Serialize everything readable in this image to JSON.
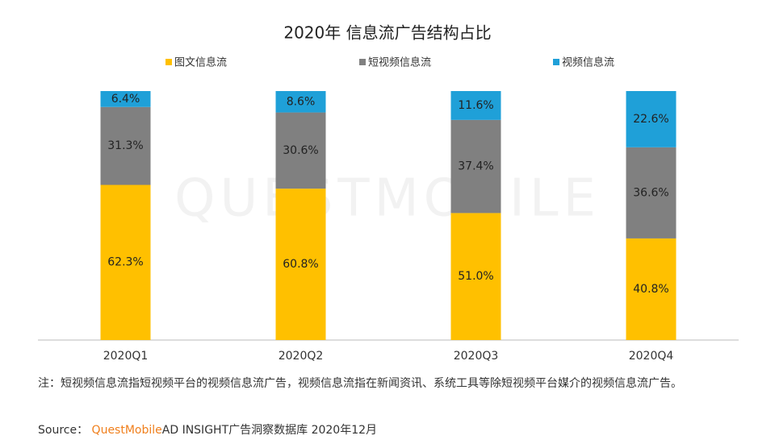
{
  "chart_data": {
    "type": "stacked_bar",
    "title": "2020年 信息流广告结构占比",
    "categories": [
      "2020Q1",
      "2020Q2",
      "2020Q3",
      "2020Q4"
    ],
    "series": [
      {
        "name": "图文信息流",
        "color": "#ffc000",
        "values": [
          62.3,
          60.8,
          51.0,
          40.8
        ],
        "value_labels": [
          "62.3%",
          "60.8%",
          "51.0%",
          "40.8%"
        ]
      },
      {
        "name": "短视频信息流",
        "color": "#808080",
        "values": [
          31.3,
          30.6,
          37.4,
          36.6
        ],
        "value_labels": [
          "31.3%",
          "30.6%",
          "37.4%",
          "36.6%"
        ]
      },
      {
        "name": "视频信息流",
        "color": "#1fa0d8",
        "values": [
          6.4,
          8.6,
          11.6,
          22.6
        ],
        "value_labels": [
          "6.4%",
          "8.6%",
          "11.6%",
          "22.6%"
        ]
      }
    ],
    "ylim": [
      0,
      100
    ],
    "legend": "top",
    "watermark": "QUESTMOBILE",
    "note": "注：短视频信息流指短视频平台的视频信息流广告，视频信息流指在新闻资讯、系统工具等除短视频平台媒介的视频信息流广告。",
    "source": {
      "label": "Source：",
      "brand": "QuestMobile",
      "text": "AD INSIGHT广告洞察数据库 2020年12月"
    }
  }
}
